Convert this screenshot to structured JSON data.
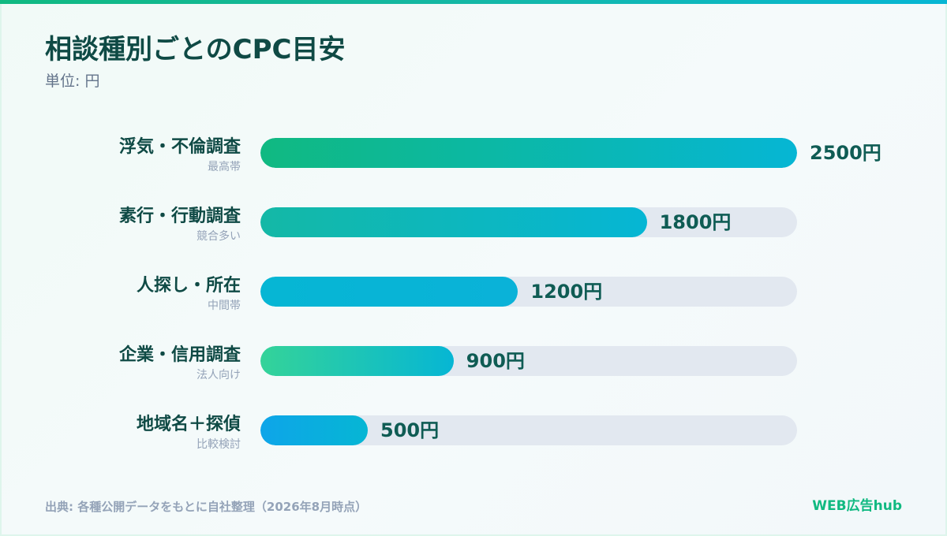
{
  "colors": {
    "accent": "#10b981",
    "title": "#0f4a45",
    "value_label": "#0f5c54",
    "muted": "#94a3b8",
    "track": "#e2e8f0"
  },
  "chart_data": {
    "type": "bar",
    "orientation": "horizontal",
    "title": "相談種別ごとのCPC目安",
    "subtitle": "単位: 円",
    "categories": [
      "浮気・不倫調査",
      "素行・行動調査",
      "人探し・所在",
      "企業・信用調査",
      "地域名＋探偵"
    ],
    "sub_labels": [
      "最高帯",
      "競合多い",
      "中間帯",
      "法人向け",
      "比較検討"
    ],
    "values": [
      2500,
      1800,
      1200,
      900,
      500
    ],
    "value_labels": [
      "2500円",
      "1800円",
      "1200円",
      "900円",
      "500円"
    ],
    "xlim": [
      0,
      2500
    ],
    "grid": false,
    "bar_colors": [
      [
        "#10b981",
        "#06b6d4"
      ],
      [
        "#14b8a6",
        "#06b6d4"
      ],
      [
        "#06b6d4",
        "#0ab2d8"
      ],
      [
        "#34d399",
        "#06b6d4"
      ],
      [
        "#0ea5e9",
        "#06b6d4"
      ]
    ]
  },
  "footer": {
    "source": "出典: 各種公開データをもとに自社整理（2026年8月時点）",
    "brand": "WEB広告hub"
  }
}
